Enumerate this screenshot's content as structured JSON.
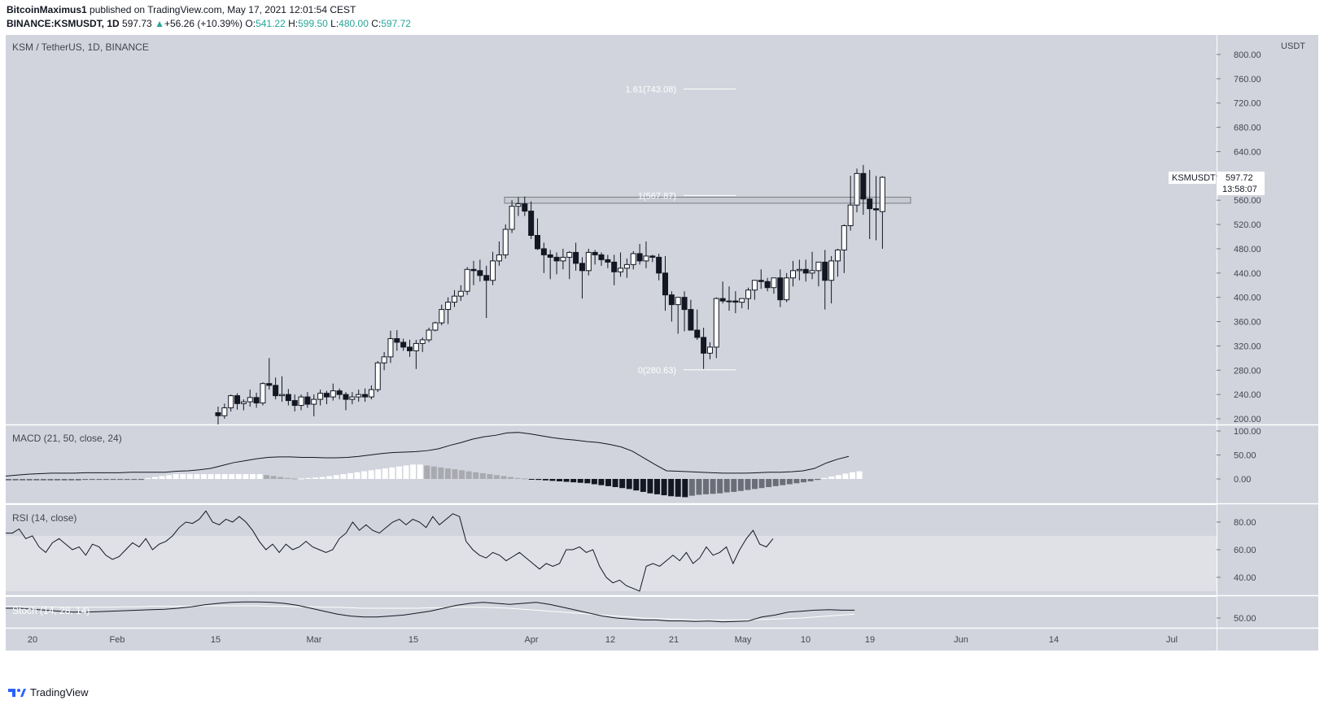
{
  "header": {
    "publisher": "BitcoinMaximus1",
    "published_text": "published on TradingView.com, May 17, 2021 12:01:54 CEST",
    "symbol": "BINANCE:KSMUSDT, 1D",
    "last": "597.73",
    "change": "+56.26 (+10.39%)",
    "o_label": "O:",
    "o": "541.22",
    "h_label": "H:",
    "h": "599.50",
    "l_label": "L:",
    "l": "480.00",
    "c_label": "C:",
    "c": "597.72"
  },
  "footer": {
    "brand": "TradingView"
  },
  "chart_data": {
    "type": "candlestick",
    "title": "KSM / TetherUS, 1D, BINANCE",
    "currency": "USDT",
    "price_ticks": [
      200,
      240,
      280,
      320,
      360,
      400,
      440,
      480,
      520,
      560,
      600,
      640,
      680,
      720,
      760,
      800
    ],
    "price_tick_labels": [
      "200.00",
      "240.00",
      "280.00",
      "320.00",
      "360.00",
      "400.00",
      "440.00",
      "480.00",
      "520.00",
      "560.00",
      "600.00",
      "640.00",
      "680.00",
      "720.00",
      "760.00",
      "800.00"
    ],
    "last_price_tag": {
      "symbol": "KSMUSDT",
      "price": "597.72",
      "countdown": "13:58:07"
    },
    "x_tick_labels": [
      "20",
      "Feb",
      "15",
      "Mar",
      "15",
      "Apr",
      "12",
      "21",
      "May",
      "10",
      "19",
      "Jun",
      "14",
      "Jul"
    ],
    "fib_levels": [
      {
        "label": "1.61(743.08)",
        "value": 743.08
      },
      {
        "label": "1(567.87)",
        "value": 567.87
      },
      {
        "label": "0(280.63)",
        "value": 280.63
      }
    ],
    "resistance_zone": {
      "low": 555,
      "high": 565
    },
    "candles": [
      [
        210,
        220,
        190,
        205
      ],
      [
        205,
        225,
        200,
        218
      ],
      [
        218,
        240,
        212,
        238
      ],
      [
        238,
        242,
        215,
        225
      ],
      [
        225,
        232,
        214,
        228
      ],
      [
        228,
        248,
        220,
        235
      ],
      [
        235,
        243,
        218,
        226
      ],
      [
        226,
        260,
        222,
        258
      ],
      [
        258,
        300,
        248,
        255
      ],
      [
        255,
        268,
        232,
        238
      ],
      [
        238,
        270,
        228,
        240
      ],
      [
        240,
        249,
        222,
        230
      ],
      [
        230,
        240,
        212,
        222
      ],
      [
        222,
        240,
        214,
        236
      ],
      [
        236,
        244,
        218,
        224
      ],
      [
        224,
        240,
        204,
        232
      ],
      [
        232,
        248,
        222,
        242
      ],
      [
        242,
        246,
        224,
        236
      ],
      [
        236,
        258,
        230,
        246
      ],
      [
        246,
        250,
        232,
        240
      ],
      [
        240,
        244,
        214,
        232
      ],
      [
        232,
        244,
        224,
        236
      ],
      [
        236,
        248,
        228,
        240
      ],
      [
        240,
        250,
        228,
        236
      ],
      [
        236,
        255,
        232,
        248
      ],
      [
        248,
        295,
        244,
        292
      ],
      [
        292,
        310,
        280,
        302
      ],
      [
        302,
        345,
        292,
        332
      ],
      [
        332,
        346,
        312,
        326
      ],
      [
        326,
        332,
        312,
        318
      ],
      [
        318,
        330,
        302,
        312
      ],
      [
        312,
        330,
        282,
        324
      ],
      [
        324,
        334,
        310,
        330
      ],
      [
        330,
        350,
        326,
        346
      ],
      [
        346,
        360,
        344,
        358
      ],
      [
        358,
        388,
        354,
        380
      ],
      [
        380,
        400,
        356,
        392
      ],
      [
        392,
        412,
        384,
        402
      ],
      [
        402,
        420,
        394,
        410
      ],
      [
        410,
        450,
        404,
        446
      ],
      [
        446,
        460,
        420,
        444
      ],
      [
        444,
        462,
        426,
        436
      ],
      [
        436,
        452,
        366,
        428
      ],
      [
        428,
        475,
        420,
        460
      ],
      [
        460,
        492,
        452,
        470
      ],
      [
        470,
        520,
        464,
        512
      ],
      [
        512,
        560,
        506,
        550
      ],
      [
        550,
        565,
        534,
        554
      ],
      [
        554,
        566,
        534,
        542
      ],
      [
        542,
        558,
        496,
        502
      ],
      [
        502,
        530,
        478,
        480
      ],
      [
        480,
        490,
        440,
        470
      ],
      [
        470,
        478,
        430,
        466
      ],
      [
        466,
        474,
        438,
        460
      ],
      [
        460,
        480,
        446,
        466
      ],
      [
        466,
        476,
        430,
        474
      ],
      [
        474,
        490,
        444,
        456
      ],
      [
        456,
        466,
        398,
        444
      ],
      [
        444,
        480,
        436,
        474
      ],
      [
        474,
        478,
        454,
        470
      ],
      [
        470,
        474,
        452,
        462
      ],
      [
        462,
        470,
        448,
        458
      ],
      [
        458,
        470,
        420,
        442
      ],
      [
        442,
        474,
        434,
        448
      ],
      [
        448,
        464,
        432,
        454
      ],
      [
        454,
        476,
        446,
        472
      ],
      [
        472,
        488,
        454,
        460
      ],
      [
        460,
        492,
        448,
        468
      ],
      [
        468,
        470,
        458,
        466
      ],
      [
        466,
        472,
        428,
        440
      ],
      [
        440,
        468,
        378,
        404
      ],
      [
        404,
        410,
        360,
        388
      ],
      [
        388,
        398,
        340,
        400
      ],
      [
        400,
        410,
        344,
        380
      ],
      [
        380,
        396,
        348,
        346
      ],
      [
        346,
        380,
        330,
        334
      ],
      [
        334,
        350,
        282,
        308
      ],
      [
        308,
        326,
        298,
        318
      ],
      [
        318,
        400,
        300,
        398
      ],
      [
        398,
        426,
        390,
        394
      ],
      [
        394,
        418,
        378,
        394
      ],
      [
        394,
        410,
        374,
        392
      ],
      [
        392,
        398,
        382,
        398
      ],
      [
        398,
        416,
        380,
        412
      ],
      [
        412,
        426,
        396,
        428
      ],
      [
        428,
        446,
        414,
        426
      ],
      [
        426,
        432,
        410,
        416
      ],
      [
        416,
        432,
        406,
        432
      ],
      [
        432,
        446,
        384,
        396
      ],
      [
        396,
        440,
        392,
        432
      ],
      [
        432,
        460,
        418,
        444
      ],
      [
        444,
        462,
        428,
        446
      ],
      [
        446,
        462,
        426,
        440
      ],
      [
        440,
        475,
        430,
        444
      ],
      [
        444,
        458,
        418,
        458
      ],
      [
        458,
        478,
        380,
        428
      ],
      [
        428,
        468,
        390,
        460
      ],
      [
        460,
        480,
        434,
        478
      ],
      [
        478,
        520,
        440,
        518
      ],
      [
        518,
        600,
        510,
        552
      ],
      [
        552,
        612,
        540,
        604
      ],
      [
        604,
        618,
        536,
        562
      ],
      [
        562,
        610,
        496,
        546
      ],
      [
        546,
        600,
        494,
        544
      ],
      [
        541.22,
        599.5,
        480,
        597.72
      ]
    ],
    "macd": {
      "label": "MACD (21, 50, close, 24)",
      "ticks": [
        0,
        50,
        100
      ],
      "tick_labels": [
        "0.00",
        "50.00",
        "100.00"
      ],
      "line": [
        6,
        8,
        10,
        11,
        12,
        12,
        12,
        13,
        13,
        13,
        13,
        14,
        14,
        14,
        14,
        16,
        17,
        19,
        22,
        28,
        34,
        38,
        42,
        45,
        46,
        46,
        45,
        45,
        44,
        44,
        45,
        47,
        50,
        53,
        55,
        56,
        57,
        59,
        63,
        70,
        76,
        83,
        88,
        91,
        96,
        97,
        94,
        90,
        86,
        83,
        81,
        78,
        76,
        72,
        67,
        58,
        44,
        30,
        17,
        16,
        15,
        14,
        13,
        12,
        12,
        12,
        13,
        14,
        14,
        15,
        17,
        22,
        33,
        41,
        47
      ],
      "hist_step": 3,
      "hist": [
        -3,
        -3,
        -3,
        -3,
        -3,
        -3,
        -3,
        -3,
        -3,
        -3,
        -3,
        -2,
        -2,
        -2,
        -2,
        -2,
        -2,
        -2,
        -2,
        -2,
        2,
        4,
        6,
        8,
        10,
        10,
        10,
        10,
        10,
        10,
        10,
        10,
        10,
        10,
        10,
        10,
        10,
        8,
        6,
        4,
        2,
        1,
        1,
        2,
        3,
        4,
        6,
        8,
        10,
        12,
        14,
        16,
        18,
        20,
        22,
        24,
        26,
        28,
        30,
        30,
        28,
        26,
        24,
        22,
        20,
        18,
        16,
        14,
        12,
        10,
        8,
        6,
        4,
        2,
        1,
        -1,
        -2,
        -3,
        -4,
        -5,
        -6,
        -7,
        -8,
        -9,
        -11,
        -13,
        -15,
        -17,
        -19,
        -21,
        -24,
        -27,
        -30,
        -32,
        -34,
        -36,
        -37,
        -38,
        -35,
        -33,
        -32,
        -31,
        -30,
        -28,
        -27,
        -25,
        -23,
        -21,
        -19,
        -17,
        -15,
        -13,
        -11,
        -9,
        -7,
        -5,
        -2,
        2,
        5,
        8,
        11,
        14,
        16
      ]
    },
    "rsi": {
      "label": "RSI (14, close)",
      "ticks": [
        40,
        60,
        80
      ],
      "tick_labels": [
        "40.00",
        "60.00",
        "80.00"
      ],
      "band": [
        30,
        70
      ],
      "values": [
        72,
        72,
        75,
        68,
        70,
        62,
        58,
        65,
        68,
        64,
        60,
        62,
        56,
        64,
        62,
        56,
        53,
        55,
        60,
        65,
        62,
        68,
        60,
        64,
        66,
        70,
        76,
        80,
        79,
        82,
        88,
        80,
        78,
        82,
        80,
        84,
        80,
        74,
        66,
        60,
        64,
        58,
        64,
        60,
        62,
        66,
        62,
        60,
        58,
        60,
        68,
        72,
        80,
        74,
        78,
        74,
        72,
        76,
        80,
        82,
        78,
        82,
        80,
        76,
        84,
        78,
        82,
        86,
        84,
        66,
        60,
        56,
        54,
        58,
        56,
        52,
        55,
        58,
        54,
        50,
        46,
        50,
        48,
        50,
        60,
        60,
        62,
        58,
        60,
        48,
        40,
        36,
        38,
        34,
        32,
        30,
        48,
        50,
        48,
        52,
        56,
        52,
        58,
        50,
        54,
        62,
        56,
        58,
        62,
        50,
        60,
        68,
        74,
        64,
        62,
        68
      ]
    },
    "stoch": {
      "label": "Stoch (14, 28, 14)",
      "ticks": [
        50
      ],
      "tick_labels": [
        "50.00"
      ],
      "k": [
        70,
        70,
        68,
        66,
        64,
        62,
        62,
        63,
        64,
        65,
        66,
        67,
        68,
        70,
        73,
        77,
        80,
        82,
        83,
        83,
        82,
        80,
        76,
        70,
        64,
        58,
        54,
        52,
        52,
        54,
        56,
        60,
        64,
        70,
        76,
        80,
        82,
        80,
        78,
        80,
        82,
        78,
        72,
        66,
        60,
        54,
        50,
        48,
        46,
        46,
        44,
        44,
        43,
        44,
        42,
        43,
        44,
        52,
        56,
        62,
        64,
        66,
        67,
        66,
        66
      ],
      "d": [
        74,
        74,
        73,
        73,
        72,
        72,
        72,
        72,
        72,
        73,
        73,
        74,
        74,
        74,
        74,
        75,
        75,
        75,
        75,
        75,
        74,
        74,
        73,
        73,
        72,
        72,
        71,
        70,
        70,
        70,
        70,
        70,
        71,
        71,
        72,
        72,
        72,
        71,
        70,
        68,
        66,
        64,
        62,
        60,
        58,
        56,
        54,
        52,
        50,
        49,
        48,
        47,
        46,
        46,
        46,
        46,
        46,
        47,
        48,
        49,
        50,
        52,
        54,
        56,
        58
      ]
    }
  }
}
